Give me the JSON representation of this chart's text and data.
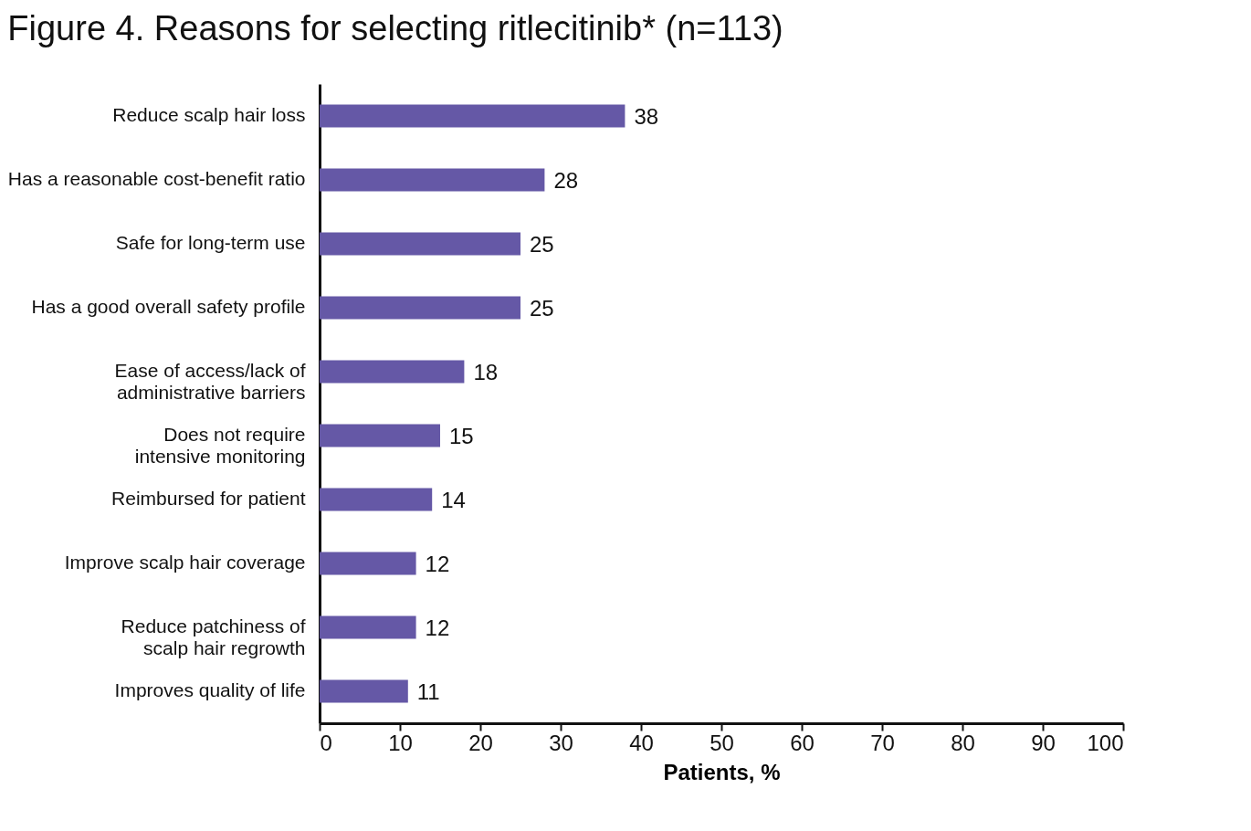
{
  "chart_data": {
    "type": "bar",
    "orientation": "horizontal",
    "title": "Figure 4. Reasons for selecting ritlecitinib* (n=113)",
    "xlabel": "Patients, %",
    "categories": [
      "Reduce scalp hair loss",
      "Has a reasonable cost-benefit ratio",
      "Safe for long-term use",
      "Has a good overall safety profile",
      "Ease of access/lack of\nadministrative barriers",
      "Does not require\nintensive monitoring",
      "Reimbursed for patient",
      "Improve scalp hair coverage",
      "Reduce patchiness of\nscalp hair regrowth",
      "Improves quality of life"
    ],
    "values": [
      38,
      28,
      25,
      25,
      18,
      15,
      14,
      12,
      12,
      11
    ],
    "color": "#6558a6",
    "xlim": [
      0,
      100
    ],
    "xticks": [
      0,
      10,
      20,
      30,
      40,
      50,
      60,
      70,
      80,
      90,
      100
    ],
    "data_labels": true
  }
}
